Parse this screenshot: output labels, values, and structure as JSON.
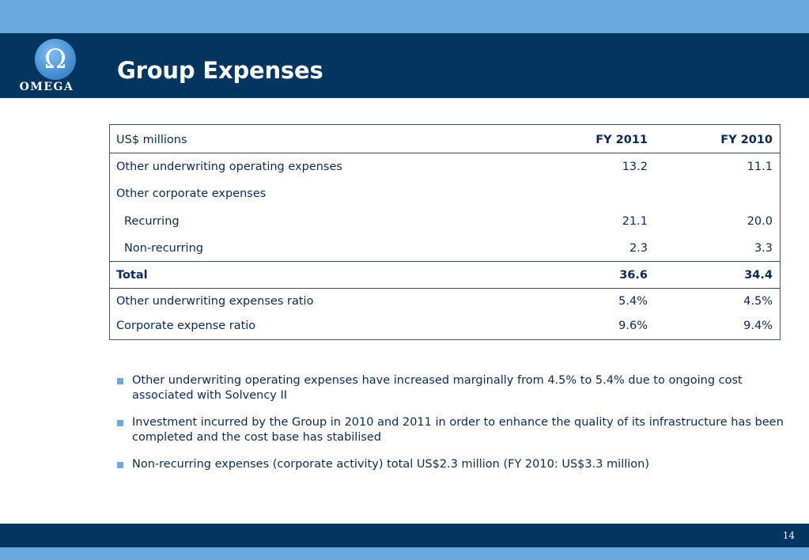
{
  "header": {
    "logo_symbol": "Ω",
    "logo_text": "OMEGA",
    "title": "Group Expenses"
  },
  "table": {
    "columns": [
      "US$ millions",
      "FY 2011",
      "FY 2010"
    ],
    "rows": [
      {
        "label": "Other underwriting operating expenses",
        "fy2011": "13.2",
        "fy2010": "11.1"
      },
      {
        "label": "Other corporate expenses",
        "fy2011": "",
        "fy2010": ""
      },
      {
        "label": "Recurring",
        "fy2011": "21.1",
        "fy2010": "20.0"
      },
      {
        "label": "Non-recurring",
        "fy2011": "2.3",
        "fy2010": "3.3"
      },
      {
        "label": "Total",
        "fy2011": "36.6",
        "fy2010": "34.4"
      },
      {
        "label": "Other underwriting expenses ratio",
        "fy2011": "5.4%",
        "fy2010": "4.5%"
      },
      {
        "label": "Corporate expense ratio",
        "fy2011": "9.6%",
        "fy2010": "9.4%"
      }
    ]
  },
  "bullets": [
    "Other underwriting operating expenses have increased marginally from 4.5% to 5.4% due to ongoing cost associated with  Solvency II",
    "Investment incurred by the Group in 2010 and 2011 in order to enhance the quality of its infrastructure has been completed and the cost base has stabilised",
    "Non-recurring expenses (corporate activity) total US$2.3 million (FY 2010: US$3.3 million)"
  ],
  "footer": {
    "page_number": "14"
  },
  "colors": {
    "header_navy": "#02355f",
    "band_light_blue": "#6aa9dd",
    "text_navy": "#0a2a55",
    "bullet_square": "#6fa8dc"
  }
}
